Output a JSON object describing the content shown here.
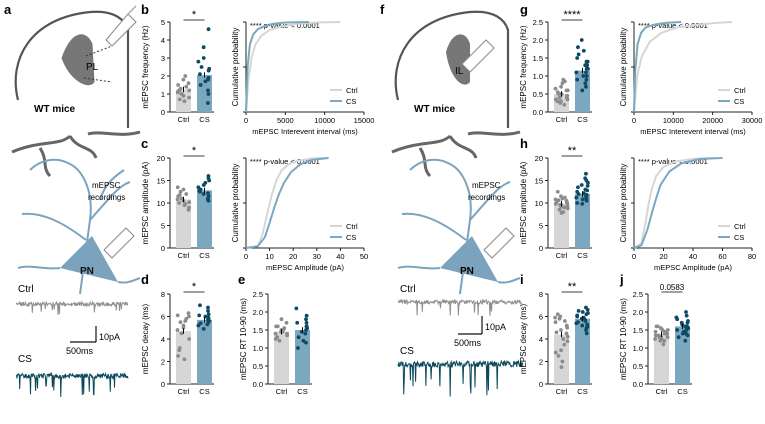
{
  "colors": {
    "ctrl": "#d6d6d6",
    "cs": "#7ba7bf",
    "ctrl_dot": "#8c8c8c",
    "cs_dot": "#0d4a63",
    "ctrl_trace": "#8f8f8f",
    "cs_trace": "#0b4a5c",
    "neuron": "#7ba3bd",
    "dendrite": "#5b7f95",
    "brain_outline": "#555555",
    "region": "#777777",
    "axis": "#222222"
  },
  "panel_letters": [
    "a",
    "b",
    "c",
    "d",
    "e",
    "f",
    "g",
    "h",
    "i",
    "j"
  ],
  "schematic": {
    "left": {
      "region_label": "PL",
      "mice_label": "WT mice",
      "pn_label": "PN",
      "recording_label": "mEPSC\nrecordings",
      "trace_ctrl_label": "Ctrl",
      "trace_cs_label": "CS",
      "scale_y": "10pA",
      "scale_x": "500ms"
    },
    "right": {
      "region_label": "IL",
      "mice_label": "WT mice",
      "pn_label": "PN",
      "recording_label": "mEPSC\nrecordings",
      "trace_ctrl_label": "Ctrl",
      "trace_cs_label": "CS",
      "scale_y": "10pA",
      "scale_x": "500ms"
    }
  },
  "chart_data": [
    {
      "id": "b",
      "type": "bar",
      "categories": [
        "Ctrl",
        "CS"
      ],
      "values": [
        1.25,
        2.05
      ],
      "ylabel": "mEPSC frequency (Hz)",
      "ylim": [
        0,
        5
      ],
      "yticks": [
        "0",
        "1",
        "2",
        "3",
        "4",
        "5"
      ],
      "significance": "*",
      "points": {
        "Ctrl": [
          1.1,
          1.8,
          1.3,
          0.8,
          1.5,
          1.2,
          0.9,
          1.6,
          1.0,
          0.6,
          1.4,
          1.2,
          0.7,
          2.0,
          1.1
        ],
        "CS": [
          2.5,
          3.6,
          1.9,
          1.2,
          2.8,
          1.7,
          4.6,
          2.1,
          1.0,
          2.3,
          1.5,
          3.0,
          1.8,
          0.5,
          2.4
        ]
      }
    },
    {
      "id": "b_cdf",
      "type": "line",
      "title": "**** p-value < 0.0001",
      "xlabel": "mEPSC Interevent interval (ms)",
      "ylabel": "Cumulative probability",
      "xlim": [
        0,
        15000
      ],
      "xticks": [
        "0",
        "5000",
        "10000",
        "15000"
      ],
      "series": [
        {
          "name": "Ctrl",
          "x": [
            0,
            300,
            700,
            1200,
            2000,
            3000,
            4500,
            6500,
            9000,
            12000
          ],
          "y": [
            0,
            0.35,
            0.6,
            0.75,
            0.85,
            0.91,
            0.95,
            0.98,
            0.995,
            1
          ]
        },
        {
          "name": "CS",
          "x": [
            0,
            200,
            500,
            900,
            1500,
            2500,
            3500,
            5000,
            8000
          ],
          "y": [
            0,
            0.5,
            0.75,
            0.86,
            0.92,
            0.96,
            0.98,
            0.995,
            1
          ]
        }
      ]
    },
    {
      "id": "c",
      "type": "bar",
      "categories": [
        "Ctrl",
        "CS"
      ],
      "values": [
        10.8,
        12.8
      ],
      "ylabel": "mEPSC amplitude (pA)",
      "ylim": [
        0,
        20
      ],
      "yticks": [
        "0",
        "5",
        "10",
        "15",
        "20"
      ],
      "significance": "*",
      "points": {
        "Ctrl": [
          10.5,
          12.5,
          9.0,
          11.5,
          10.0,
          13.0,
          8.5,
          11.0,
          9.5,
          12.0,
          10.2,
          11.8,
          9.8,
          13.5,
          10.8
        ],
        "CS": [
          12.0,
          15.5,
          11.0,
          13.5,
          14.5,
          10.5,
          12.5,
          16.0,
          11.5,
          13.0,
          14.0,
          12.2,
          10.8,
          15.0,
          12.8
        ]
      }
    },
    {
      "id": "c_cdf",
      "type": "line",
      "title": "**** p-value < 0.0001",
      "xlabel": "mEPSC  Amplitude (pA)",
      "ylabel": "Cumulative probability",
      "xlim": [
        0,
        50
      ],
      "xticks": [
        "0",
        "10",
        "20",
        "30",
        "40",
        "50"
      ],
      "series": [
        {
          "name": "Ctrl",
          "x": [
            0,
            5,
            7,
            9,
            11,
            13,
            15,
            18,
            22,
            28,
            35
          ],
          "y": [
            0,
            0.02,
            0.15,
            0.38,
            0.6,
            0.76,
            0.86,
            0.93,
            0.97,
            0.995,
            1
          ]
        },
        {
          "name": "CS",
          "x": [
            0,
            5,
            8,
            10,
            12,
            14,
            16,
            19,
            23,
            28,
            35
          ],
          "y": [
            0,
            0.02,
            0.12,
            0.28,
            0.45,
            0.6,
            0.72,
            0.84,
            0.93,
            0.98,
            1
          ]
        }
      ]
    },
    {
      "id": "d",
      "type": "bar",
      "categories": [
        "Ctrl",
        "CS"
      ],
      "values": [
        4.7,
        5.7
      ],
      "ylabel": "mEPSC decay (ms)",
      "ylim": [
        0,
        8
      ],
      "yticks": [
        "0",
        "2",
        "4",
        "6",
        "8"
      ],
      "significance": "*",
      "points": {
        "Ctrl": [
          5.5,
          6.0,
          2.5,
          3.0,
          5.0,
          6.3,
          4.5,
          2.2,
          5.8,
          4.0,
          3.2,
          5.6,
          6.1,
          4.8,
          5.2
        ],
        "CS": [
          5.8,
          6.5,
          5.2,
          6.0,
          5.5,
          7.0,
          5.9,
          6.2,
          5.4,
          4.9,
          6.8,
          5.7,
          5.6,
          6.1,
          5.3
        ]
      }
    },
    {
      "id": "e",
      "type": "bar",
      "categories": [
        "Ctrl",
        "CS"
      ],
      "values": [
        1.45,
        1.5
      ],
      "ylabel": "mEPSC RT 10-90 (ms)",
      "ylim": [
        0,
        2.5
      ],
      "yticks": [
        "0.0",
        "0.5",
        "1.0",
        "1.5",
        "2.0",
        "2.5"
      ],
      "significance": "",
      "points": {
        "Ctrl": [
          1.4,
          1.6,
          1.3,
          1.5,
          1.7,
          1.2,
          1.45,
          1.55,
          1.35,
          1.6,
          1.5,
          1.25,
          1.4,
          1.8,
          1.45
        ],
        "CS": [
          1.5,
          2.1,
          1.2,
          1.7,
          1.0,
          1.6,
          1.9,
          1.3,
          1.45,
          1.8,
          1.15,
          1.55,
          1.7,
          1.4,
          1.6
        ]
      }
    },
    {
      "id": "g",
      "type": "bar",
      "categories": [
        "Ctrl",
        "CS"
      ],
      "values": [
        0.5,
        1.15
      ],
      "ylabel": "mEPSC frequency (Hz)",
      "ylim": [
        0,
        2.5
      ],
      "yticks": [
        "0.0",
        "0.5",
        "1.0",
        "1.5",
        "2.0",
        "2.5"
      ],
      "significance": "****",
      "points": {
        "Ctrl": [
          0.3,
          0.5,
          0.6,
          0.4,
          0.8,
          0.2,
          0.45,
          0.55,
          0.9,
          0.35,
          0.65,
          0.5,
          0.3,
          0.7,
          0.4,
          0.25,
          0.6,
          0.5,
          0.85,
          0.35
        ],
        "CS": [
          1.0,
          1.4,
          1.8,
          0.9,
          1.2,
          1.6,
          2.0,
          1.1,
          0.7,
          1.3,
          1.5,
          0.8,
          1.0,
          1.2,
          1.7,
          0.6,
          1.4,
          1.1,
          0.9,
          1.3
        ]
      }
    },
    {
      "id": "g_cdf",
      "type": "line",
      "title": "**** p-value < 0.0001",
      "xlabel": "mEPSC Interevent interval (ms)",
      "ylabel": "Cumulative probability",
      "xlim": [
        0,
        30000
      ],
      "xticks": [
        "0",
        "10000",
        "20000",
        "30000"
      ],
      "series": [
        {
          "name": "Ctrl",
          "x": [
            0,
            800,
            2000,
            4000,
            7000,
            11000,
            16000,
            21000,
            25000
          ],
          "y": [
            0,
            0.4,
            0.62,
            0.78,
            0.88,
            0.94,
            0.97,
            0.99,
            1
          ]
        },
        {
          "name": "CS",
          "x": [
            0,
            300,
            900,
            1800,
            3000,
            5000,
            8000,
            12000
          ],
          "y": [
            0,
            0.45,
            0.75,
            0.88,
            0.94,
            0.97,
            0.99,
            1
          ]
        }
      ]
    },
    {
      "id": "h",
      "type": "bar",
      "categories": [
        "Ctrl",
        "CS"
      ],
      "values": [
        9.9,
        12.0
      ],
      "ylabel": "mEPSC amplitude (pA)",
      "ylim": [
        0,
        20
      ],
      "yticks": [
        "0",
        "5",
        "10",
        "15",
        "20"
      ],
      "significance": "**",
      "points": {
        "Ctrl": [
          9.5,
          10.5,
          8.5,
          11.0,
          9.0,
          10.0,
          12.5,
          8.0,
          9.8,
          10.8,
          7.8,
          11.5,
          9.2,
          10.2,
          9.6,
          8.8,
          10.6,
          11.2,
          9.4,
          10.1
        ],
        "CS": [
          11.0,
          13.5,
          15.0,
          10.5,
          12.0,
          14.0,
          11.5,
          16.5,
          12.8,
          10.0,
          13.0,
          11.8,
          14.5,
          12.2,
          9.8,
          13.8,
          11.2,
          12.5,
          15.5,
          10.8
        ]
      }
    },
    {
      "id": "h_cdf",
      "type": "line",
      "title": "**** p-value < 0.0001",
      "xlabel": "mEPSC  Amplitude (pA)",
      "ylabel": "Cumulative probability",
      "xlim": [
        0,
        80
      ],
      "xticks": [
        "0",
        "20",
        "40",
        "60",
        "80"
      ],
      "series": [
        {
          "name": "Ctrl",
          "x": [
            0,
            5,
            8,
            10,
            12,
            15,
            20,
            28,
            40,
            55
          ],
          "y": [
            0,
            0.05,
            0.3,
            0.5,
            0.65,
            0.8,
            0.9,
            0.96,
            0.99,
            1
          ]
        },
        {
          "name": "CS",
          "x": [
            0,
            5,
            9,
            12,
            15,
            18,
            24,
            32,
            45,
            60
          ],
          "y": [
            0,
            0.03,
            0.2,
            0.38,
            0.55,
            0.7,
            0.85,
            0.94,
            0.99,
            1
          ]
        }
      ]
    },
    {
      "id": "i",
      "type": "bar",
      "categories": [
        "Ctrl",
        "CS"
      ],
      "values": [
        4.4,
        5.8
      ],
      "ylabel": "mEPSC decay (ms)",
      "ylim": [
        0,
        8
      ],
      "yticks": [
        "0",
        "2",
        "4",
        "6",
        "8"
      ],
      "significance": "**",
      "points": {
        "Ctrl": [
          4.5,
          5.8,
          2.0,
          3.5,
          5.0,
          6.2,
          4.0,
          2.8,
          5.5,
          1.5,
          4.8,
          3.0,
          5.2,
          6.0,
          4.2,
          2.5,
          5.6,
          3.8,
          4.6,
          5.9
        ],
        "CS": [
          5.5,
          6.2,
          5.0,
          6.5,
          5.8,
          4.8,
          6.8,
          5.3,
          6.0,
          5.6,
          4.5,
          6.3,
          5.9,
          5.2,
          6.6,
          5.4,
          6.1,
          5.7,
          6.4,
          5.1
        ]
      }
    },
    {
      "id": "j",
      "type": "bar",
      "categories": [
        "Ctrl",
        "CS"
      ],
      "values": [
        1.38,
        1.6
      ],
      "ylabel": "mEPSC RT 10-90 (ms)",
      "ylim": [
        0,
        2.5
      ],
      "yticks": [
        "0.0",
        "0.5",
        "1.0",
        "1.5",
        "2.0",
        "2.5"
      ],
      "significance": "0.0583",
      "points": {
        "Ctrl": [
          1.3,
          1.5,
          1.2,
          1.4,
          1.6,
          1.1,
          1.35,
          1.45,
          1.25,
          1.55,
          1.3,
          1.4,
          1.2,
          1.5,
          1.35,
          1.45,
          1.3,
          1.6,
          1.25,
          1.4
        ],
        "CS": [
          1.5,
          1.9,
          1.3,
          1.7,
          2.0,
          1.4,
          1.6,
          1.8,
          1.2,
          1.55,
          1.75,
          1.45,
          1.65,
          1.35,
          1.85,
          1.5,
          1.6,
          1.4,
          1.7,
          1.55
        ]
      }
    }
  ]
}
